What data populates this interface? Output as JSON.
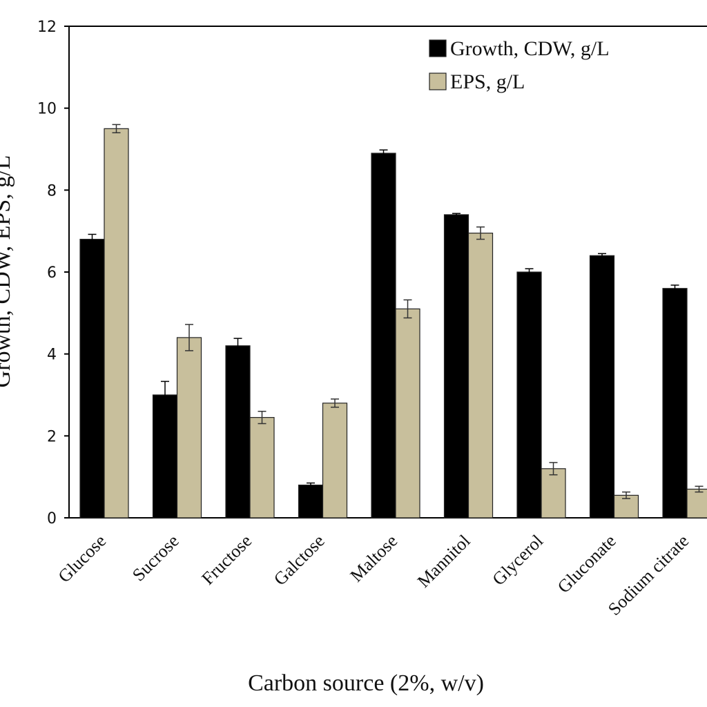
{
  "chart_data": {
    "type": "bar",
    "title": "",
    "xlabel": "Carbon source (2%, w/v)",
    "ylabel": "Growth, CDW, EPS, g/L",
    "ylim": [
      0,
      12
    ],
    "yticks": [
      0,
      2,
      4,
      6,
      8,
      10,
      12
    ],
    "grid": false,
    "legend_position": "top-right",
    "categories": [
      "Glucose",
      "Sucrose",
      "Fructose",
      "Galctose",
      "Maltose",
      "Mannitol",
      "Glycerol",
      "Gluconate",
      "Sodium citrate"
    ],
    "series": [
      {
        "name": "Growth, CDW, g/L",
        "color": "#000000",
        "values": [
          6.8,
          3.0,
          4.2,
          0.8,
          8.9,
          7.4,
          6.0,
          6.4,
          5.6
        ],
        "errors": [
          0.12,
          0.33,
          0.18,
          0.05,
          0.08,
          0.03,
          0.08,
          0.05,
          0.08
        ]
      },
      {
        "name": "EPS, g/L",
        "color": "#c8bf9c",
        "values": [
          9.5,
          4.4,
          2.45,
          2.8,
          5.1,
          6.95,
          1.2,
          0.55,
          0.7
        ],
        "errors": [
          0.1,
          0.32,
          0.15,
          0.1,
          0.22,
          0.15,
          0.15,
          0.08,
          0.07
        ]
      }
    ]
  }
}
